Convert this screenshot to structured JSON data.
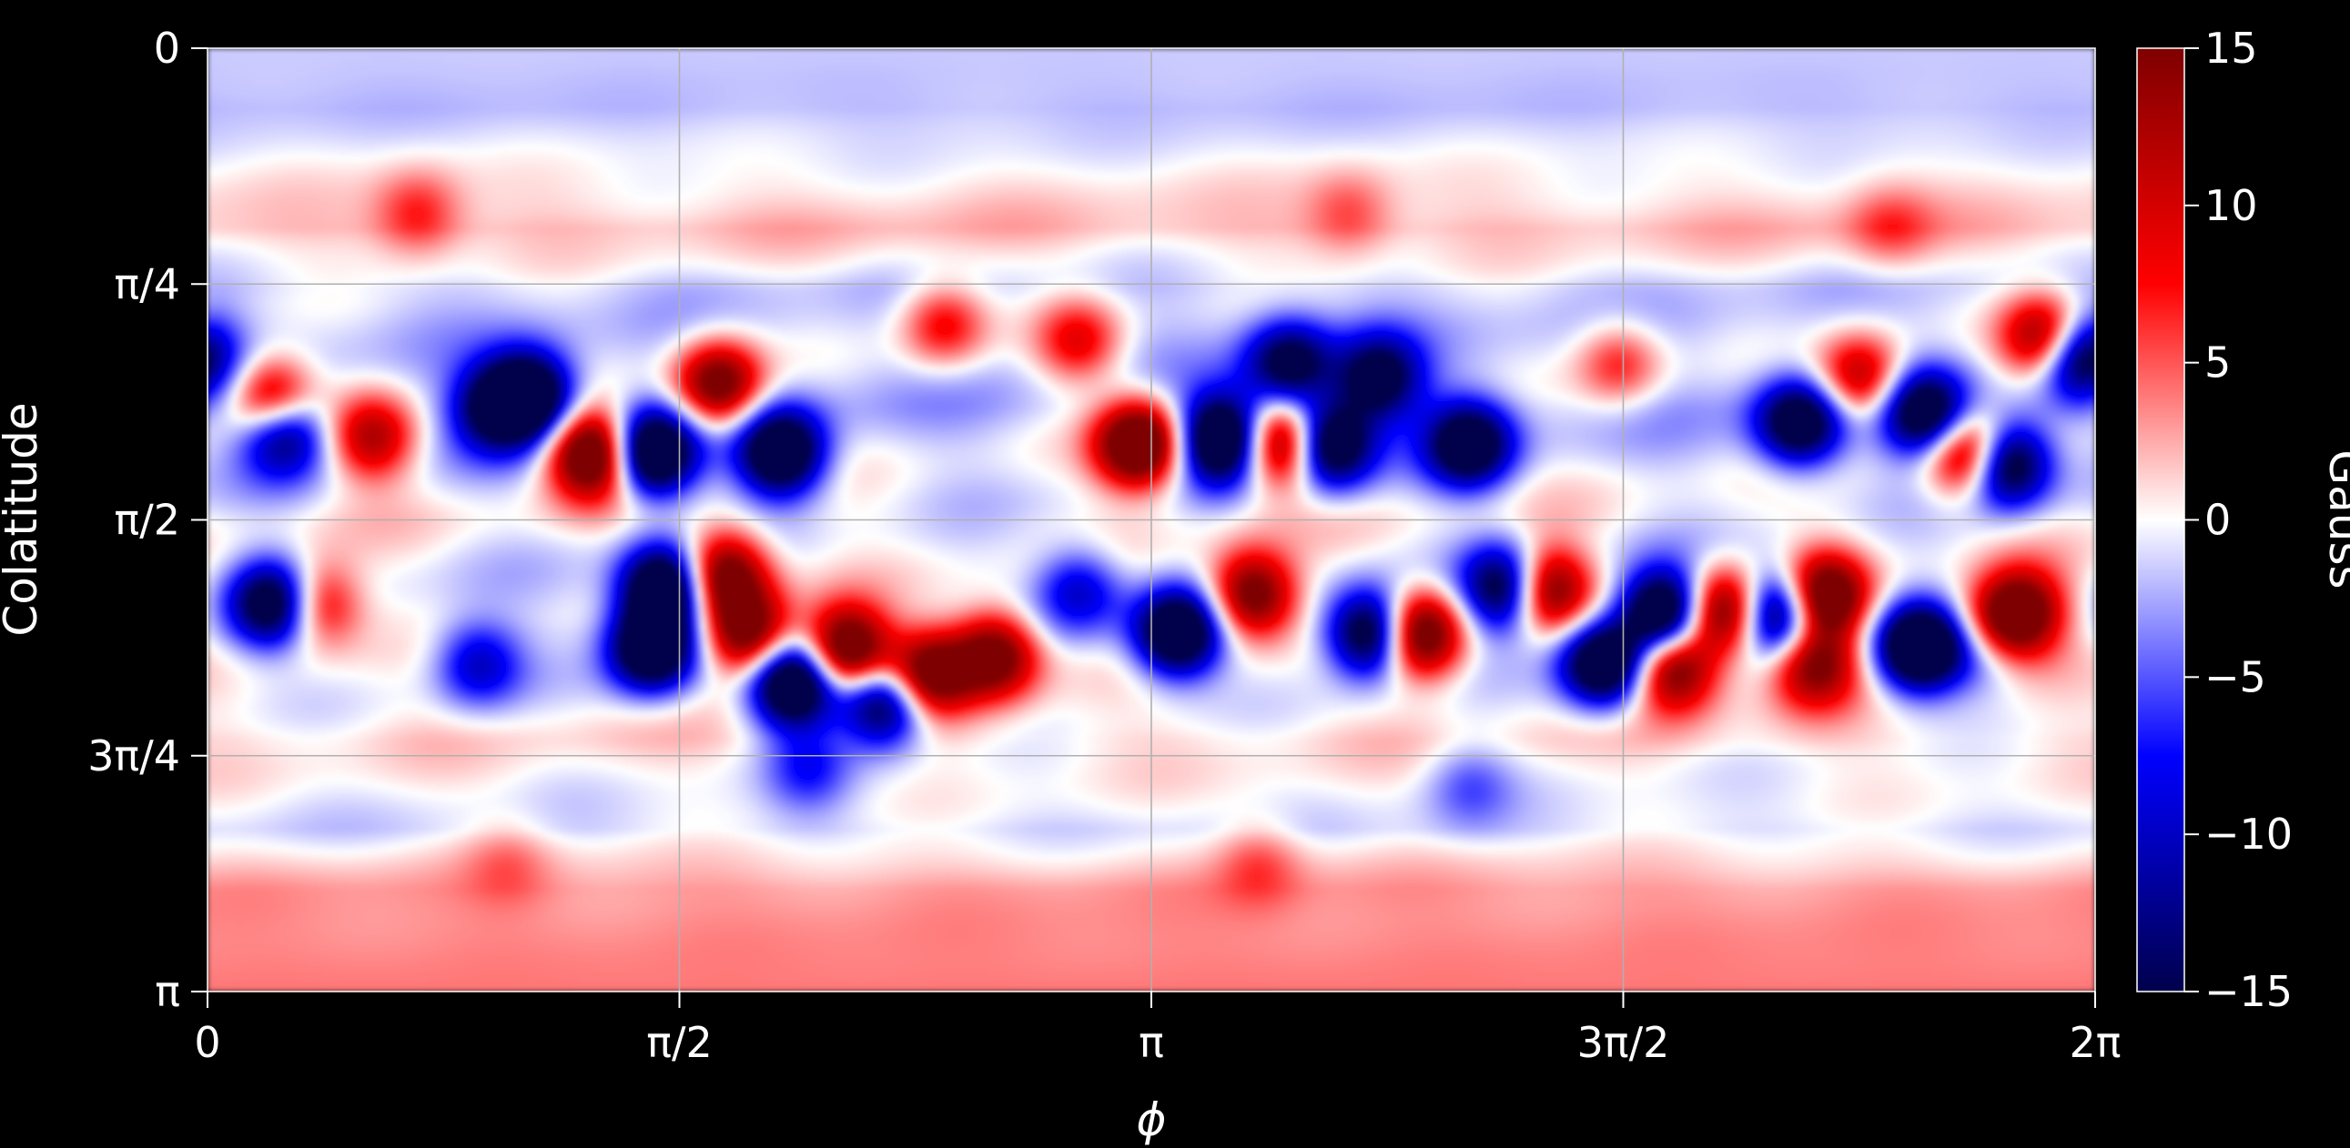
{
  "chart_data": {
    "type": "heatmap",
    "title": "",
    "xlabel": "ϕ",
    "ylabel": "Colatitude",
    "x_ticks": [
      "0",
      "π/2",
      "π",
      "3π/2",
      "2π"
    ],
    "y_ticks": [
      "0",
      "π/4",
      "π/2",
      "3π/4",
      "π"
    ],
    "xlim": [
      0,
      6.2832
    ],
    "ylim": [
      0,
      3.1416
    ],
    "grid": true,
    "colormap": "seismic",
    "colormap_colors": [
      "#00004c",
      "#0000ff",
      "#ffffff",
      "#ff0000",
      "#7f0000"
    ],
    "colorbar": {
      "label": "Gauss",
      "ticks": [
        "15",
        "10",
        "5",
        "0",
        "−5",
        "−10",
        "−15"
      ],
      "range": [
        -15,
        15
      ]
    },
    "regions": [
      {
        "phi": 0.22,
        "theta": 1.18,
        "value": 12
      },
      {
        "phi": 0.25,
        "theta": 1.27,
        "value": -12
      },
      {
        "phi": 0.55,
        "theta": 1.3,
        "value": 8
      },
      {
        "phi": 0.22,
        "theta": 1.85,
        "value": -12
      },
      {
        "phi": 0.36,
        "theta": 1.85,
        "value": 8
      },
      {
        "phi": 1.07,
        "theta": 1.16,
        "value": -14
      },
      {
        "phi": 1.28,
        "theta": 1.35,
        "value": 15
      },
      {
        "phi": 1.48,
        "theta": 1.35,
        "value": -15
      },
      {
        "phi": 1.7,
        "theta": 1.12,
        "value": 12
      },
      {
        "phi": 1.91,
        "theta": 1.35,
        "value": -14
      },
      {
        "phi": 0.95,
        "theta": 1.2,
        "value": -8
      },
      {
        "phi": 1.52,
        "theta": 1.8,
        "value": -15
      },
      {
        "phi": 1.48,
        "theta": 2.0,
        "value": -14
      },
      {
        "phi": 1.72,
        "theta": 1.75,
        "value": 12
      },
      {
        "phi": 1.8,
        "theta": 1.95,
        "value": 12
      },
      {
        "phi": 1.95,
        "theta": 2.12,
        "value": -15
      },
      {
        "phi": 2.13,
        "theta": 2.0,
        "value": 14
      },
      {
        "phi": 2.4,
        "theta": 2.08,
        "value": 12
      },
      {
        "phi": 2.62,
        "theta": 2.02,
        "value": 12
      },
      {
        "phi": 2.25,
        "theta": 2.18,
        "value": -12
      },
      {
        "phi": 2.45,
        "theta": 0.92,
        "value": 6
      },
      {
        "phi": 2.9,
        "theta": 0.98,
        "value": 6
      },
      {
        "phi": 3.1,
        "theta": 1.32,
        "value": 15
      },
      {
        "phi": 3.38,
        "theta": 1.3,
        "value": -15
      },
      {
        "phi": 3.58,
        "theta": 1.32,
        "value": 13
      },
      {
        "phi": 3.73,
        "theta": 1.32,
        "value": -14
      },
      {
        "phi": 3.6,
        "theta": 1.05,
        "value": -10
      },
      {
        "phi": 3.9,
        "theta": 1.1,
        "value": -10
      },
      {
        "phi": 4.2,
        "theta": 1.32,
        "value": -12
      },
      {
        "phi": 3.23,
        "theta": 1.95,
        "value": -14
      },
      {
        "phi": 3.48,
        "theta": 1.82,
        "value": 12
      },
      {
        "phi": 3.88,
        "theta": 1.95,
        "value": -14
      },
      {
        "phi": 4.03,
        "theta": 1.95,
        "value": 14
      },
      {
        "phi": 4.33,
        "theta": 1.8,
        "value": -13
      },
      {
        "phi": 4.45,
        "theta": 1.8,
        "value": 13
      },
      {
        "phi": 4.65,
        "theta": 2.05,
        "value": -14
      },
      {
        "phi": 4.85,
        "theta": 1.88,
        "value": -15
      },
      {
        "phi": 5.05,
        "theta": 1.88,
        "value": 13
      },
      {
        "phi": 4.88,
        "theta": 2.06,
        "value": 12
      },
      {
        "phi": 5.23,
        "theta": 1.88,
        "value": -14
      },
      {
        "phi": 5.38,
        "theta": 1.83,
        "value": 14
      },
      {
        "phi": 5.35,
        "theta": 2.05,
        "value": 10
      },
      {
        "phi": 5.7,
        "theta": 2.0,
        "value": -15
      },
      {
        "phi": 5.93,
        "theta": 1.95,
        "value": 14
      },
      {
        "phi": 6.04,
        "theta": 1.88,
        "value": 12
      },
      {
        "phi": 5.92,
        "theta": 1.98,
        "value": -12
      },
      {
        "phi": 5.3,
        "theta": 1.25,
        "value": -12
      },
      {
        "phi": 5.5,
        "theta": 1.1,
        "value": 9
      },
      {
        "phi": 5.87,
        "theta": 1.35,
        "value": 13
      },
      {
        "phi": 5.98,
        "theta": 1.38,
        "value": -15
      },
      {
        "phi": 5.72,
        "theta": 1.22,
        "value": -12
      },
      {
        "phi": 6.12,
        "theta": 0.97,
        "value": 12
      },
      {
        "phi": 6.22,
        "theta": 1.02,
        "value": -12
      },
      {
        "phi": 0.9,
        "theta": 2.05,
        "value": -6
      },
      {
        "phi": 2.9,
        "theta": 1.8,
        "value": -6
      },
      {
        "phi": 4.7,
        "theta": 1.05,
        "value": 5
      },
      {
        "phi": 0.7,
        "theta": 0.55,
        "value": 4
      },
      {
        "phi": 3.8,
        "theta": 0.55,
        "value": 3
      },
      {
        "phi": 5.6,
        "theta": 0.6,
        "value": 3
      },
      {
        "phi": 2.0,
        "theta": 2.4,
        "value": -4
      },
      {
        "phi": 4.2,
        "theta": 2.45,
        "value": -3
      },
      {
        "phi": 1.0,
        "theta": 2.7,
        "value": 2
      },
      {
        "phi": 3.5,
        "theta": 2.7,
        "value": 3
      }
    ],
    "background": [
      {
        "theta": 0.0,
        "value": -1.5
      },
      {
        "theta": 0.2,
        "value": -2.0
      },
      {
        "theta": 0.45,
        "value": 0.5
      },
      {
        "theta": 0.6,
        "value": 2.0
      },
      {
        "theta": 0.8,
        "value": -1.5
      },
      {
        "theta": 1.2,
        "value": -2.0
      },
      {
        "theta": 1.57,
        "value": 0.0
      },
      {
        "theta": 1.95,
        "value": -1.0
      },
      {
        "theta": 2.3,
        "value": 1.0
      },
      {
        "theta": 2.6,
        "value": -1.0
      },
      {
        "theta": 2.8,
        "value": 3.0
      },
      {
        "theta": 3.1416,
        "value": 4.0
      }
    ]
  }
}
